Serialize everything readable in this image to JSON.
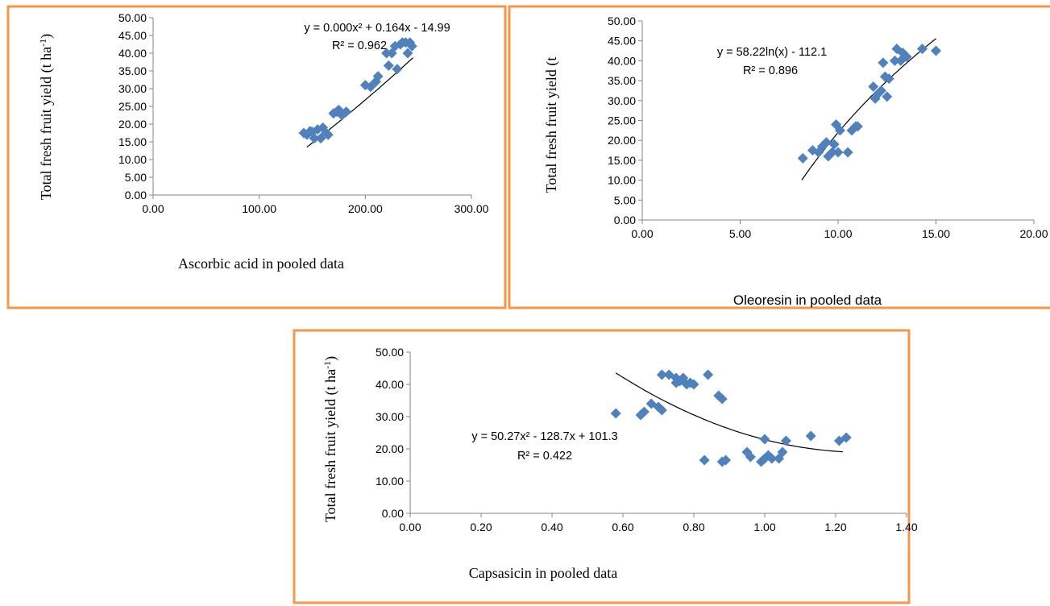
{
  "chart_data": [
    {
      "type": "scatter",
      "xlabel": "Ascorbic acid  in pooled data",
      "ylabel": "Total fresh fruit yield (t ha-1)",
      "xlim": [
        0,
        300
      ],
      "ylim": [
        0,
        50
      ],
      "x_ticks": [
        "0.00",
        "100.00",
        "200.00",
        "300.00"
      ],
      "y_ticks": [
        "0.00",
        "5.00",
        "10.00",
        "15.00",
        "20.00",
        "25.00",
        "30.00",
        "35.00",
        "40.00",
        "45.00",
        "50.00"
      ],
      "trendline": {
        "equation": "y = 0.000x² + 0.164x - 14.99",
        "r2": "R² = 0.962"
      },
      "marker_color": "#4f81bd",
      "points": [
        [
          142,
          17.5
        ],
        [
          145,
          17
        ],
        [
          148,
          18
        ],
        [
          150,
          17.8
        ],
        [
          152,
          16
        ],
        [
          155,
          18.5
        ],
        [
          158,
          16
        ],
        [
          160,
          19
        ],
        [
          163,
          17.5
        ],
        [
          165,
          17
        ],
        [
          170,
          23
        ],
        [
          173,
          23.5
        ],
        [
          175,
          24
        ],
        [
          178,
          22.5
        ],
        [
          182,
          23.5
        ],
        [
          200,
          31
        ],
        [
          205,
          30.5
        ],
        [
          210,
          32
        ],
        [
          212,
          33.5
        ],
        [
          220,
          40
        ],
        [
          222,
          36.5
        ],
        [
          225,
          40
        ],
        [
          228,
          42
        ],
        [
          230,
          35.5
        ],
        [
          233,
          42.5
        ],
        [
          235,
          43
        ],
        [
          238,
          43
        ],
        [
          240,
          40
        ],
        [
          242,
          43
        ],
        [
          244,
          42
        ]
      ]
    },
    {
      "type": "scatter",
      "xlabel": "Oleoresin in pooled data",
      "ylabel": "Total fresh fruit yield (t",
      "xlim": [
        0,
        20
      ],
      "ylim": [
        0,
        50
      ],
      "x_ticks": [
        "0.00",
        "5.00",
        "10.00",
        "15.00",
        "20.00"
      ],
      "y_ticks": [
        "0.00",
        "5.00",
        "10.00",
        "15.00",
        "20.00",
        "25.00",
        "30.00",
        "35.00",
        "40.00",
        "45.00",
        "50.00"
      ],
      "trendline": {
        "equation": "y = 58.22ln(x) - 112.1",
        "r2": "R² = 0.896"
      },
      "marker_color": "#4f81bd",
      "points": [
        [
          8.2,
          15.5
        ],
        [
          8.7,
          17.5
        ],
        [
          9.0,
          17
        ],
        [
          9.2,
          18.5
        ],
        [
          9.4,
          19.5
        ],
        [
          9.5,
          16
        ],
        [
          9.7,
          17
        ],
        [
          9.8,
          19
        ],
        [
          9.9,
          24
        ],
        [
          10.0,
          17
        ],
        [
          10.1,
          22.5
        ],
        [
          10.5,
          17
        ],
        [
          10.7,
          22.5
        ],
        [
          10.9,
          23.5
        ],
        [
          11.0,
          23.5
        ],
        [
          11.8,
          33.5
        ],
        [
          11.9,
          30.5
        ],
        [
          12.0,
          31.5
        ],
        [
          12.2,
          32.5
        ],
        [
          12.3,
          39.5
        ],
        [
          12.4,
          36
        ],
        [
          12.5,
          31
        ],
        [
          12.6,
          35.5
        ],
        [
          12.9,
          40
        ],
        [
          13.0,
          43
        ],
        [
          13.2,
          40
        ],
        [
          13.3,
          42
        ],
        [
          13.5,
          41
        ],
        [
          14.3,
          43
        ],
        [
          15.0,
          42.5
        ]
      ]
    },
    {
      "type": "scatter",
      "xlabel": "Capsasicin in pooled data",
      "ylabel": "Total fresh fruit yield (t ha-1)",
      "xlim": [
        0,
        1.4
      ],
      "ylim": [
        0,
        50
      ],
      "x_ticks": [
        "0.00",
        "0.20",
        "0.40",
        "0.60",
        "0.80",
        "1.00",
        "1.20",
        "1.40"
      ],
      "y_ticks": [
        "0.00",
        "10.00",
        "20.00",
        "30.00",
        "40.00",
        "50.00"
      ],
      "trendline": {
        "equation": "y = 50.27x² - 128.7x + 101.3",
        "r2": "R² = 0.422"
      },
      "marker_color": "#4f81bd",
      "points": [
        [
          0.58,
          31
        ],
        [
          0.65,
          30.5
        ],
        [
          0.66,
          31.5
        ],
        [
          0.68,
          34
        ],
        [
          0.7,
          33
        ],
        [
          0.71,
          32
        ],
        [
          0.71,
          43
        ],
        [
          0.73,
          43
        ],
        [
          0.75,
          42
        ],
        [
          0.75,
          40.5
        ],
        [
          0.76,
          41
        ],
        [
          0.77,
          42
        ],
        [
          0.78,
          40
        ],
        [
          0.79,
          40.5
        ],
        [
          0.8,
          40
        ],
        [
          0.83,
          16.5
        ],
        [
          0.84,
          43
        ],
        [
          0.87,
          36.5
        ],
        [
          0.88,
          35.5
        ],
        [
          0.88,
          16
        ],
        [
          0.89,
          16.5
        ],
        [
          0.95,
          19
        ],
        [
          0.96,
          17.5
        ],
        [
          0.99,
          16
        ],
        [
          1.0,
          17
        ],
        [
          1.0,
          23
        ],
        [
          1.01,
          18
        ],
        [
          1.02,
          17
        ],
        [
          1.04,
          17
        ],
        [
          1.05,
          19
        ],
        [
          1.06,
          22.5
        ],
        [
          1.13,
          24
        ],
        [
          1.21,
          22.5
        ],
        [
          1.23,
          23.5
        ]
      ]
    }
  ]
}
